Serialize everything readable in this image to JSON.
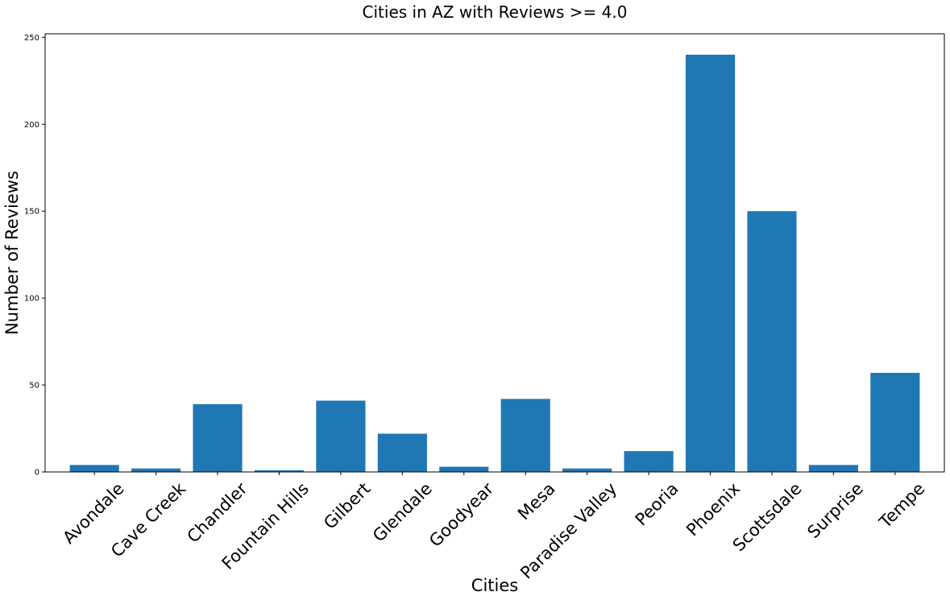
{
  "chart_data": {
    "type": "bar",
    "title": "Cities in AZ with Reviews >= 4.0",
    "xlabel": "Cities",
    "ylabel": "Number of Reviews",
    "categories": [
      "Avondale",
      "Cave Creek",
      "Chandler",
      "Fountain Hills",
      "Gilbert",
      "Glendale",
      "Goodyear",
      "Mesa",
      "Paradise Valley",
      "Peoria",
      "Phoenix",
      "Scottsdale",
      "Surprise",
      "Tempe"
    ],
    "values": [
      4,
      2,
      39,
      1,
      41,
      22,
      3,
      42,
      2,
      12,
      240,
      150,
      4,
      57
    ],
    "ylim": [
      0,
      252
    ],
    "yticks": [
      0,
      50,
      100,
      150,
      200,
      250
    ],
    "bar_color": "#1f77b4",
    "grid": false,
    "legend": "none"
  }
}
